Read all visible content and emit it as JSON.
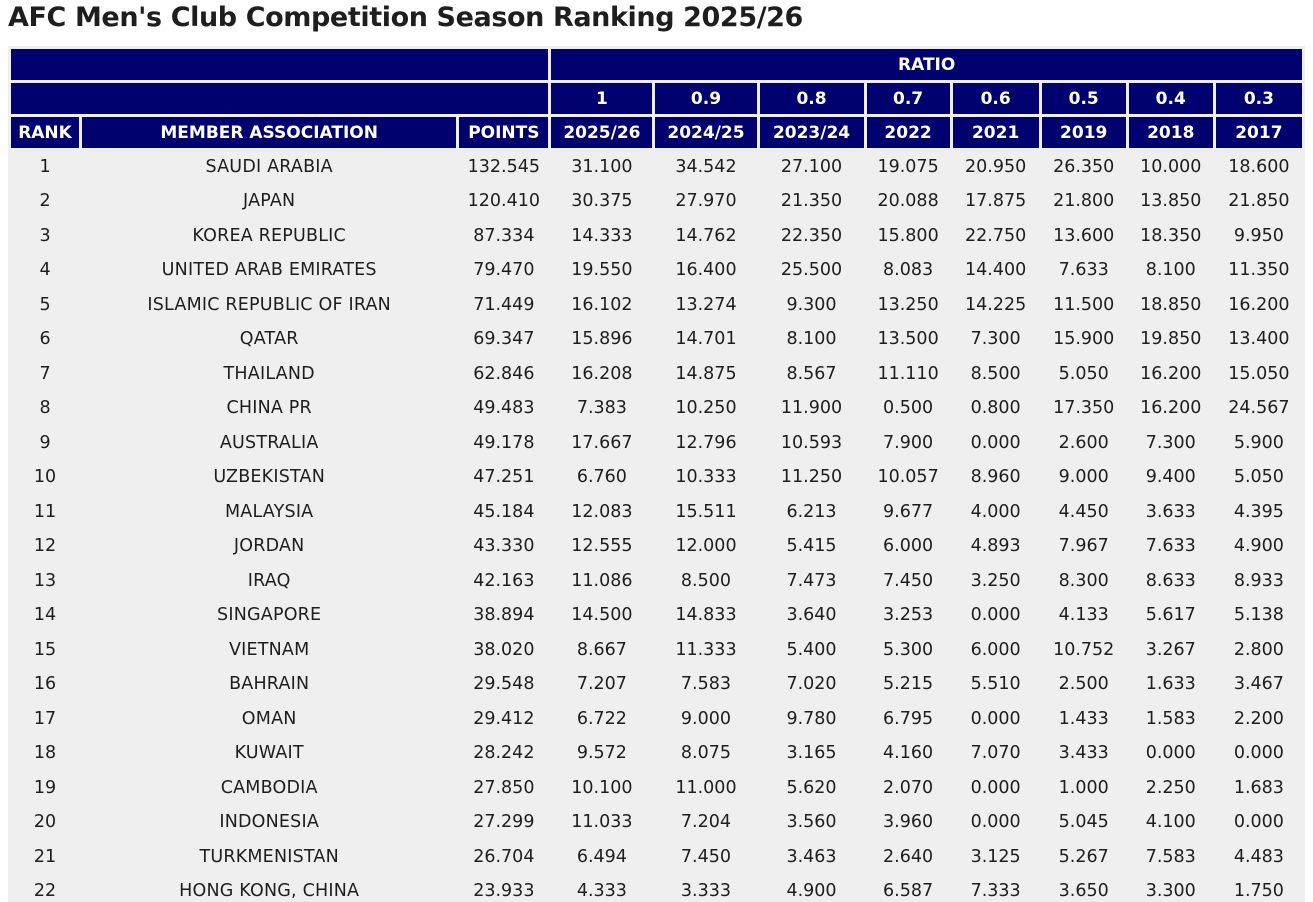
{
  "title": "AFC Men's Club Competition Season Ranking 2025/26",
  "header": {
    "ratio_label": "RATIO",
    "ratios": [
      "1",
      "0.9",
      "0.8",
      "0.7",
      "0.6",
      "0.5",
      "0.4",
      "0.3"
    ],
    "rank_label": "RANK",
    "association_label": "MEMBER ASSOCIATION",
    "points_label": "POINTS",
    "seasons": [
      "2025/26",
      "2024/25",
      "2023/24",
      "2022",
      "2021",
      "2019",
      "2018",
      "2017"
    ]
  },
  "rows": [
    {
      "rank": "1",
      "name": "SAUDI ARABIA",
      "points": "132.545",
      "values": [
        "31.100",
        "34.542",
        "27.100",
        "19.075",
        "20.950",
        "26.350",
        "10.000",
        "18.600"
      ]
    },
    {
      "rank": "2",
      "name": "JAPAN",
      "points": "120.410",
      "values": [
        "30.375",
        "27.970",
        "21.350",
        "20.088",
        "17.875",
        "21.800",
        "13.850",
        "21.850"
      ]
    },
    {
      "rank": "3",
      "name": "KOREA REPUBLIC",
      "points": "87.334",
      "values": [
        "14.333",
        "14.762",
        "22.350",
        "15.800",
        "22.750",
        "13.600",
        "18.350",
        "9.950"
      ]
    },
    {
      "rank": "4",
      "name": "UNITED ARAB EMIRATES",
      "points": "79.470",
      "values": [
        "19.550",
        "16.400",
        "25.500",
        "8.083",
        "14.400",
        "7.633",
        "8.100",
        "11.350"
      ]
    },
    {
      "rank": "5",
      "name": "ISLAMIC REPUBLIC OF IRAN",
      "points": "71.449",
      "values": [
        "16.102",
        "13.274",
        "9.300",
        "13.250",
        "14.225",
        "11.500",
        "18.850",
        "16.200"
      ]
    },
    {
      "rank": "6",
      "name": "QATAR",
      "points": "69.347",
      "values": [
        "15.896",
        "14.701",
        "8.100",
        "13.500",
        "7.300",
        "15.900",
        "19.850",
        "13.400"
      ]
    },
    {
      "rank": "7",
      "name": "THAILAND",
      "points": "62.846",
      "values": [
        "16.208",
        "14.875",
        "8.567",
        "11.110",
        "8.500",
        "5.050",
        "16.200",
        "15.050"
      ]
    },
    {
      "rank": "8",
      "name": "CHINA PR",
      "points": "49.483",
      "values": [
        "7.383",
        "10.250",
        "11.900",
        "0.500",
        "0.800",
        "17.350",
        "16.200",
        "24.567"
      ]
    },
    {
      "rank": "9",
      "name": "AUSTRALIA",
      "points": "49.178",
      "values": [
        "17.667",
        "12.796",
        "10.593",
        "7.900",
        "0.000",
        "2.600",
        "7.300",
        "5.900"
      ]
    },
    {
      "rank": "10",
      "name": "UZBEKISTAN",
      "points": "47.251",
      "values": [
        "6.760",
        "10.333",
        "11.250",
        "10.057",
        "8.960",
        "9.000",
        "9.400",
        "5.050"
      ]
    },
    {
      "rank": "11",
      "name": "MALAYSIA",
      "points": "45.184",
      "values": [
        "12.083",
        "15.511",
        "6.213",
        "9.677",
        "4.000",
        "4.450",
        "3.633",
        "4.395"
      ]
    },
    {
      "rank": "12",
      "name": "JORDAN",
      "points": "43.330",
      "values": [
        "12.555",
        "12.000",
        "5.415",
        "6.000",
        "4.893",
        "7.967",
        "7.633",
        "4.900"
      ]
    },
    {
      "rank": "13",
      "name": "IRAQ",
      "points": "42.163",
      "values": [
        "11.086",
        "8.500",
        "7.473",
        "7.450",
        "3.250",
        "8.300",
        "8.633",
        "8.933"
      ]
    },
    {
      "rank": "14",
      "name": "SINGAPORE",
      "points": "38.894",
      "values": [
        "14.500",
        "14.833",
        "3.640",
        "3.253",
        "0.000",
        "4.133",
        "5.617",
        "5.138"
      ]
    },
    {
      "rank": "15",
      "name": "VIETNAM",
      "points": "38.020",
      "values": [
        "8.667",
        "11.333",
        "5.400",
        "5.300",
        "6.000",
        "10.752",
        "3.267",
        "2.800"
      ]
    },
    {
      "rank": "16",
      "name": "BAHRAIN",
      "points": "29.548",
      "values": [
        "7.207",
        "7.583",
        "7.020",
        "5.215",
        "5.510",
        "2.500",
        "1.633",
        "3.467"
      ]
    },
    {
      "rank": "17",
      "name": "OMAN",
      "points": "29.412",
      "values": [
        "6.722",
        "9.000",
        "9.780",
        "6.795",
        "0.000",
        "1.433",
        "1.583",
        "2.200"
      ]
    },
    {
      "rank": "18",
      "name": "KUWAIT",
      "points": "28.242",
      "values": [
        "9.572",
        "8.075",
        "3.165",
        "4.160",
        "7.070",
        "3.433",
        "0.000",
        "0.000"
      ]
    },
    {
      "rank": "19",
      "name": "CAMBODIA",
      "points": "27.850",
      "values": [
        "10.100",
        "11.000",
        "5.620",
        "2.070",
        "0.000",
        "1.000",
        "2.250",
        "1.683"
      ]
    },
    {
      "rank": "20",
      "name": "INDONESIA",
      "points": "27.299",
      "values": [
        "11.033",
        "7.204",
        "3.560",
        "3.960",
        "0.000",
        "5.045",
        "4.100",
        "0.000"
      ]
    },
    {
      "rank": "21",
      "name": "TURKMENISTAN",
      "points": "26.704",
      "values": [
        "6.494",
        "7.450",
        "3.463",
        "2.640",
        "3.125",
        "5.267",
        "7.583",
        "4.483"
      ]
    },
    {
      "rank": "22",
      "name": "HONG KONG, CHINA",
      "points": "23.933",
      "values": [
        "4.333",
        "3.333",
        "4.900",
        "6.587",
        "7.333",
        "3.650",
        "3.300",
        "1.750"
      ]
    }
  ]
}
